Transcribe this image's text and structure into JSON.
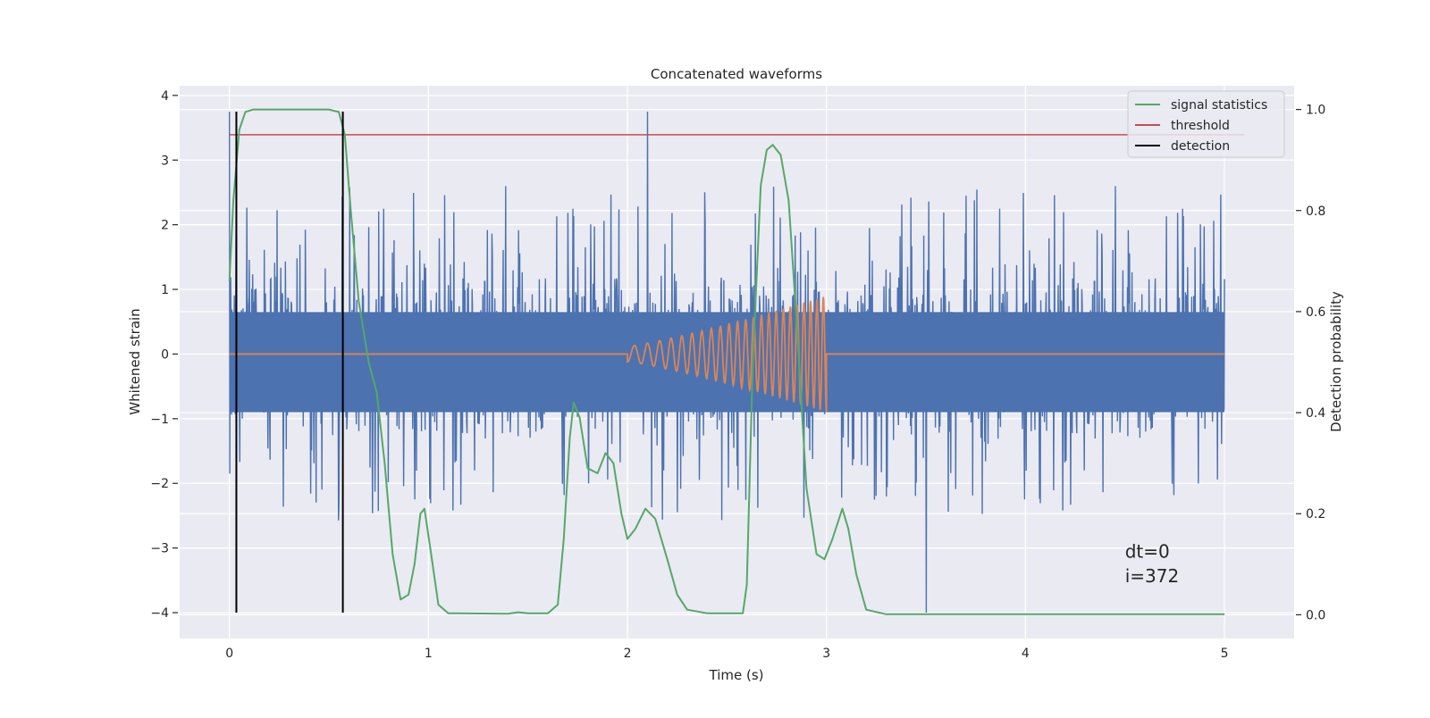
{
  "chart_data": {
    "type": "line",
    "title": "Concatenated waveforms",
    "xlabel": "Time (s)",
    "ylabel": "Whitened strain",
    "y2label": "Detection probability",
    "xlim": [
      -0.25,
      5.35
    ],
    "ylim": [
      -4.4,
      4.15
    ],
    "y2lim": [
      -0.047,
      1.047
    ],
    "xticks": [
      0,
      1,
      2,
      3,
      4,
      5
    ],
    "yticks": [
      -4,
      -3,
      -2,
      -1,
      0,
      1,
      2,
      3,
      4
    ],
    "y2ticks": [
      0.0,
      0.2,
      0.4,
      0.6,
      0.8,
      1.0
    ],
    "grid": true,
    "legend_position": "top-right",
    "colors": {
      "strain": "#4c72b0",
      "template": "#dd8452",
      "signal_statistics": "#55a868",
      "threshold": "#c44e52",
      "detection": "#000000",
      "plot_bg": "#eaeaf2",
      "grid": "#ffffff"
    },
    "series": [
      {
        "name": "",
        "axis": "left",
        "kind": "noise",
        "t_range": [
          0,
          5
        ],
        "core_band": [
          -0.9,
          0.65
        ],
        "max": 3.75,
        "min": -4.0
      },
      {
        "name": "",
        "axis": "left",
        "kind": "chirp",
        "zero_until": 2.0,
        "chirp_range": [
          2.0,
          3.0
        ],
        "amplitude_range": [
          0.12,
          0.9
        ],
        "end": 5.0
      },
      {
        "name": "signal statistics",
        "axis": "right",
        "points": [
          [
            0.0,
            0.66
          ],
          [
            0.02,
            0.82
          ],
          [
            0.05,
            0.96
          ],
          [
            0.08,
            0.995
          ],
          [
            0.12,
            1.0
          ],
          [
            0.5,
            1.0
          ],
          [
            0.55,
            0.995
          ],
          [
            0.58,
            0.95
          ],
          [
            0.61,
            0.8
          ],
          [
            0.65,
            0.62
          ],
          [
            0.7,
            0.5
          ],
          [
            0.74,
            0.44
          ],
          [
            0.78,
            0.3
          ],
          [
            0.82,
            0.12
          ],
          [
            0.86,
            0.03
          ],
          [
            0.9,
            0.04
          ],
          [
            0.93,
            0.1
          ],
          [
            0.96,
            0.2
          ],
          [
            0.98,
            0.21
          ],
          [
            1.01,
            0.13
          ],
          [
            1.05,
            0.02
          ],
          [
            1.1,
            0.003
          ],
          [
            1.4,
            0.002
          ],
          [
            1.45,
            0.005
          ],
          [
            1.5,
            0.003
          ],
          [
            1.6,
            0.003
          ],
          [
            1.65,
            0.02
          ],
          [
            1.68,
            0.15
          ],
          [
            1.71,
            0.35
          ],
          [
            1.73,
            0.42
          ],
          [
            1.76,
            0.39
          ],
          [
            1.8,
            0.29
          ],
          [
            1.85,
            0.28
          ],
          [
            1.89,
            0.32
          ],
          [
            1.93,
            0.3
          ],
          [
            1.97,
            0.2
          ],
          [
            2.0,
            0.15
          ],
          [
            2.04,
            0.17
          ],
          [
            2.09,
            0.21
          ],
          [
            2.14,
            0.19
          ],
          [
            2.2,
            0.11
          ],
          [
            2.25,
            0.04
          ],
          [
            2.3,
            0.01
          ],
          [
            2.4,
            0.003
          ],
          [
            2.58,
            0.003
          ],
          [
            2.6,
            0.06
          ],
          [
            2.63,
            0.5
          ],
          [
            2.67,
            0.85
          ],
          [
            2.7,
            0.92
          ],
          [
            2.73,
            0.93
          ],
          [
            2.77,
            0.91
          ],
          [
            2.81,
            0.82
          ],
          [
            2.85,
            0.58
          ],
          [
            2.9,
            0.25
          ],
          [
            2.95,
            0.12
          ],
          [
            2.99,
            0.11
          ],
          [
            3.03,
            0.15
          ],
          [
            3.08,
            0.21
          ],
          [
            3.11,
            0.17
          ],
          [
            3.15,
            0.08
          ],
          [
            3.2,
            0.01
          ],
          [
            3.3,
            0.001
          ],
          [
            5.0,
            0.001
          ]
        ]
      },
      {
        "name": "threshold",
        "axis": "right",
        "y": 0.95,
        "x_range": [
          0,
          5.1
        ]
      },
      {
        "name": "detection",
        "axis": "left",
        "x": [
          0.035,
          0.57
        ],
        "y_range": [
          -4.0,
          3.75
        ]
      }
    ],
    "annotations": [
      {
        "text": "dt=0",
        "x": 4.5,
        "y": -3.15
      },
      {
        "text": "i=372",
        "x": 4.5,
        "y": -3.53
      }
    ]
  }
}
